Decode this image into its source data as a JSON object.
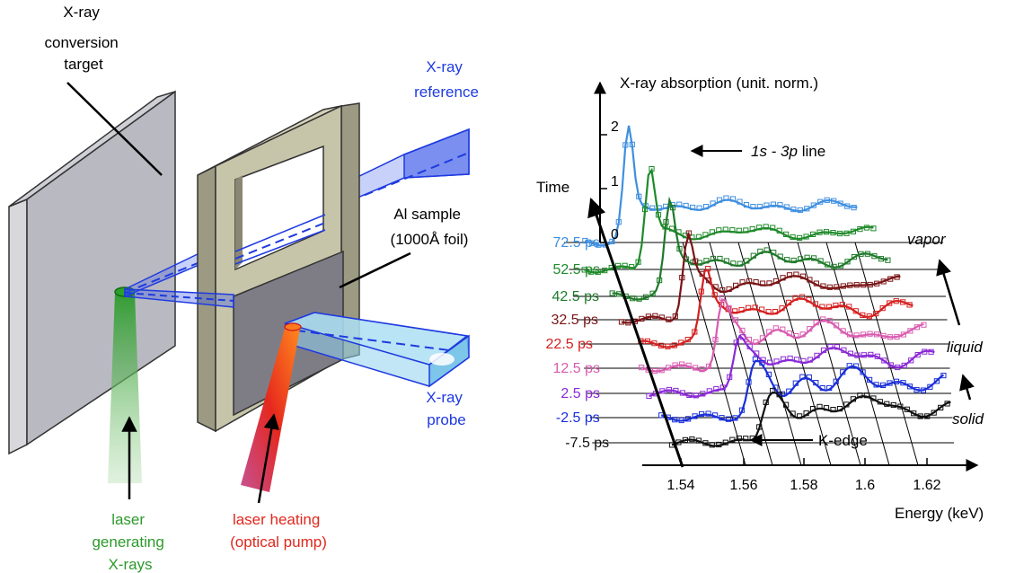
{
  "setup": {
    "conversion_target": [
      "X-ray",
      "conversion",
      "target"
    ],
    "reference_label": [
      "X-ray",
      "reference"
    ],
    "sample_label": [
      "Al sample",
      "(1000Å foil)"
    ],
    "probe_label": [
      "X-ray",
      "probe"
    ],
    "laser_gen_label": [
      "laser",
      "generating",
      "X-rays"
    ],
    "laser_heat_label": [
      "laser heating",
      "(optical pump)"
    ],
    "colors": {
      "blue": "#1f3ae0",
      "green": "#2c9a2c",
      "red": "#e0281e"
    }
  },
  "plot": {
    "ylabel": "X-ray absorption (unit. norm.)",
    "xlabel": "Energy (keV)",
    "time_label": "Time",
    "y_ticks": [
      "2",
      "1",
      "0"
    ],
    "x_ticks": [
      "1.54",
      "1.56",
      "1.58",
      "1.6",
      "1.62"
    ],
    "line_annotation_a": "1s - 3p",
    "line_annotation_b": " line",
    "kedge_annotation": "K-edge",
    "phases": [
      "vapor",
      "liquid",
      "solid"
    ],
    "traces": [
      {
        "label": "72.5 ps",
        "color": "#3f8fe0"
      },
      {
        "label": "52.5 ps",
        "color": "#1f8a2a"
      },
      {
        "label": "42.5 ps",
        "color": "#1f7a2a"
      },
      {
        "label": "32.5 ps",
        "color": "#7a1416"
      },
      {
        "label": "22.5 ps",
        "color": "#d42020"
      },
      {
        "label": "12.5 ps",
        "color": "#d85cb0"
      },
      {
        "label": "2.5 ps",
        "color": "#8a2ad6"
      },
      {
        "label": "-2.5 ps",
        "color": "#1a2fd8"
      },
      {
        "label": "-7.5 ps",
        "color": "#111111"
      }
    ]
  }
}
